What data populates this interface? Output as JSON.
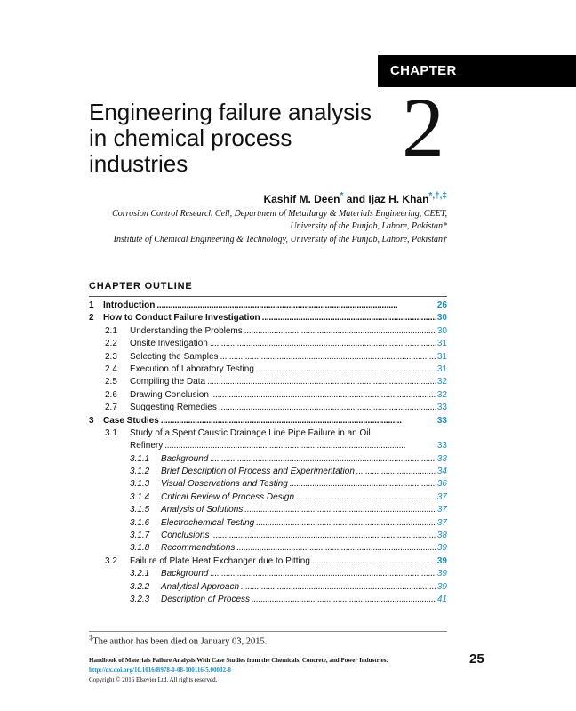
{
  "chapter_label": "CHAPTER",
  "chapter_number": "2",
  "title": "Engineering failure analysis in chemical process industries",
  "authors": {
    "a1": "Kashif M. Deen",
    "a1_mark": "*",
    "and": " and ",
    "a2": "Ijaz H. Khan",
    "a2_mark": "*,†,‡"
  },
  "affiliations": [
    "Corrosion Control Research Cell, Department of Metallurgy & Materials Engineering, CEET,",
    "University of the Punjab, Lahore, Pakistan*",
    "Institute of Chemical Engineering & Technology, University of the Punjab, Lahore, Pakistan†"
  ],
  "outline_heading": "CHAPTER OUTLINE",
  "toc": [
    {
      "level": 1,
      "num": "1",
      "label": "Introduction",
      "page": "26"
    },
    {
      "level": 1,
      "num": "2",
      "label": "How to Conduct Failure Investigation",
      "page": "30"
    },
    {
      "level": 2,
      "num": "2.1",
      "label": "Understanding the Problems",
      "page": "30"
    },
    {
      "level": 2,
      "num": "2.2",
      "label": "Onsite Investigation",
      "page": "31"
    },
    {
      "level": 2,
      "num": "2.3",
      "label": "Selecting the Samples",
      "page": "31"
    },
    {
      "level": 2,
      "num": "2.4",
      "label": "Execution of Laboratory Testing",
      "page": "31"
    },
    {
      "level": 2,
      "num": "2.5",
      "label": "Compiling the Data",
      "page": "32"
    },
    {
      "level": 2,
      "num": "2.6",
      "label": "Drawing Conclusion",
      "page": "32"
    },
    {
      "level": 2,
      "num": "2.7",
      "label": "Suggesting Remedies",
      "page": "33"
    },
    {
      "level": 1,
      "num": "3",
      "label": "Case Studies",
      "page": "33"
    },
    {
      "level": 2,
      "num": "3.1",
      "label": "Study of a Spent Caustic Drainage Line Pipe Failure in an Oil",
      "page": ""
    },
    {
      "level": 0,
      "num": "",
      "label": "Refinery",
      "page": "33"
    },
    {
      "level": 3,
      "num": "3.1.1",
      "label": "Background",
      "page": "33"
    },
    {
      "level": 3,
      "num": "3.1.2",
      "label": "Brief Description of Process and Experimentation",
      "page": "34"
    },
    {
      "level": 3,
      "num": "3.1.3",
      "label": "Visual Observations and Testing",
      "page": "36"
    },
    {
      "level": 3,
      "num": "3.1.4",
      "label": "Critical Review of Process Design",
      "page": "37"
    },
    {
      "level": 3,
      "num": "3.1.5",
      "label": "Analysis of Solutions",
      "page": "37"
    },
    {
      "level": 3,
      "num": "3.1.6",
      "label": "Electrochemical Testing",
      "page": "37"
    },
    {
      "level": 3,
      "num": "3.1.7",
      "label": "Conclusions",
      "page": "38"
    },
    {
      "level": 3,
      "num": "3.1.8",
      "label": "Recommendations",
      "page": "39"
    },
    {
      "level": 2,
      "num": "3.2",
      "label": "Failure of Plate Heat Exchanger due to Pitting",
      "page": "39",
      "bold_page": true
    },
    {
      "level": 3,
      "num": "3.2.1",
      "label": "Background",
      "page": "39"
    },
    {
      "level": 3,
      "num": "3.2.2",
      "label": "Analytical Approach",
      "page": "39"
    },
    {
      "level": 3,
      "num": "3.2.3",
      "label": "Description of Process",
      "page": "41"
    }
  ],
  "footnote": {
    "mark": "‡",
    "text": "The author has been died on January 03, 2015."
  },
  "footer": {
    "book": "Handbook of Materials Failure Analysis With Case Studies from the Chemicals, Concrete, and Power Industries.",
    "doi": "http://dx.doi.org/10.1016/B978-0-08-100116-5.00002-8",
    "copyright": "Copyright © 2016 Elsevier Ltd. All rights reserved.",
    "page_number": "25"
  },
  "colors": {
    "link": "#1a8fc9",
    "bar": "#000000"
  }
}
